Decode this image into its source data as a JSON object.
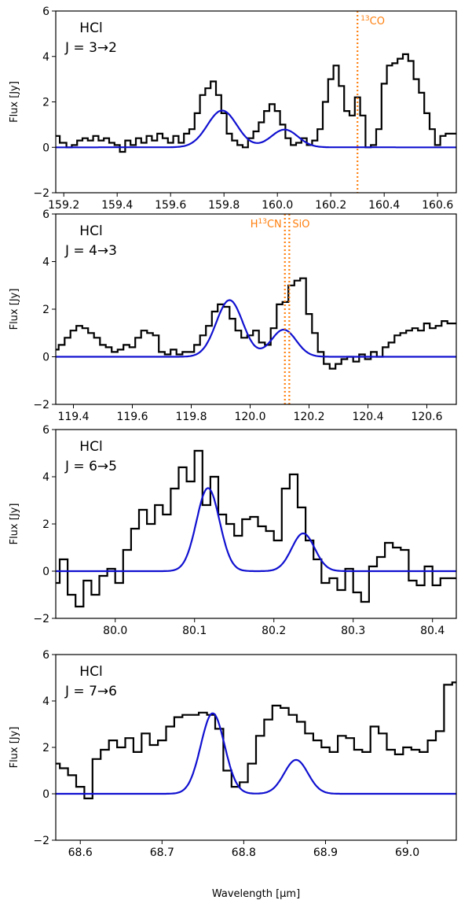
{
  "chart_data": [
    {
      "type": "line",
      "title_line1": "HCl",
      "title_line2": "J = 3→2",
      "xlabel": "",
      "ylabel": "Flux [Jy]",
      "xlim": [
        159.17,
        160.67
      ],
      "ylim": [
        -2,
        6
      ],
      "xticks": [
        159.2,
        159.4,
        159.6,
        159.8,
        160.0,
        160.2,
        160.4,
        160.6
      ],
      "xtick_labels": [
        "159.2",
        "159.4",
        "159.6",
        "159.8",
        "160.0",
        "160.2",
        "160.4",
        "160.6"
      ],
      "yticks": [
        -2,
        0,
        2,
        4,
        6
      ],
      "ytick_labels": [
        "−2",
        "0",
        "2",
        "4",
        "6"
      ],
      "observed": {
        "color": "#000000",
        "x": [
          159.17,
          159.2,
          159.22,
          159.24,
          159.26,
          159.28,
          159.3,
          159.32,
          159.34,
          159.36,
          159.38,
          159.4,
          159.42,
          159.44,
          159.46,
          159.48,
          159.5,
          159.52,
          159.54,
          159.56,
          159.58,
          159.6,
          159.62,
          159.64,
          159.66,
          159.68,
          159.7,
          159.72,
          159.74,
          159.76,
          159.78,
          159.8,
          159.82,
          159.84,
          159.86,
          159.88,
          159.9,
          159.92,
          159.94,
          159.96,
          159.98,
          160.0,
          160.02,
          160.04,
          160.06,
          160.08,
          160.1,
          160.12,
          160.14,
          160.16,
          160.18,
          160.2,
          160.22,
          160.24,
          160.26,
          160.28,
          160.3,
          160.32,
          160.34,
          160.36,
          160.38,
          160.4,
          160.42,
          160.44,
          160.46,
          160.48,
          160.5,
          160.52,
          160.54,
          160.56,
          160.58,
          160.6,
          160.62,
          160.64,
          160.67
        ],
        "y": [
          0.5,
          0.2,
          0.0,
          0.1,
          0.3,
          0.4,
          0.3,
          0.5,
          0.3,
          0.4,
          0.2,
          0.1,
          -0.2,
          0.3,
          0.1,
          0.4,
          0.2,
          0.5,
          0.3,
          0.6,
          0.4,
          0.2,
          0.5,
          0.2,
          0.6,
          0.8,
          1.5,
          2.3,
          2.6,
          2.9,
          2.3,
          1.5,
          0.6,
          0.3,
          0.1,
          0.0,
          0.4,
          0.7,
          1.1,
          1.6,
          1.9,
          1.6,
          1.0,
          0.4,
          0.1,
          0.2,
          0.4,
          0.1,
          0.3,
          0.8,
          2.0,
          3.0,
          3.6,
          2.7,
          1.6,
          1.4,
          2.2,
          1.4,
          0.0,
          0.1,
          0.8,
          2.8,
          3.6,
          3.7,
          3.9,
          4.1,
          3.8,
          3.0,
          2.4,
          1.5,
          0.8,
          0.1,
          0.5,
          0.6,
          0.6
        ]
      },
      "model": {
        "color": "#1010d0",
        "lines": [
          {
            "center": 159.793,
            "amplitude": 1.62,
            "sigma": 0.055
          },
          {
            "center": 160.027,
            "amplitude": 0.78,
            "sigma": 0.05
          }
        ]
      },
      "markers": [
        {
          "x": 160.3,
          "label_sup": "13",
          "label_main": "CO",
          "color": "#ff7f0e",
          "side": "right"
        }
      ]
    },
    {
      "type": "line",
      "title_line1": "HCl",
      "title_line2": "J = 4→3",
      "xlabel": "",
      "ylabel": "Flux [Jy]",
      "xlim": [
        119.34,
        120.7
      ],
      "ylim": [
        -2,
        6
      ],
      "xticks": [
        119.4,
        119.6,
        119.8,
        120.0,
        120.2,
        120.4,
        120.6
      ],
      "xtick_labels": [
        "119.4",
        "119.6",
        "119.8",
        "120.0",
        "120.2",
        "120.4",
        "120.6"
      ],
      "yticks": [
        -2,
        0,
        2,
        4,
        6
      ],
      "ytick_labels": [
        "−2",
        "0",
        "2",
        "4",
        "6"
      ],
      "observed": {
        "color": "#000000",
        "x": [
          119.34,
          119.36,
          119.38,
          119.4,
          119.42,
          119.44,
          119.46,
          119.48,
          119.5,
          119.52,
          119.54,
          119.56,
          119.58,
          119.6,
          119.62,
          119.64,
          119.66,
          119.68,
          119.7,
          119.72,
          119.74,
          119.76,
          119.78,
          119.8,
          119.82,
          119.84,
          119.86,
          119.88,
          119.9,
          119.92,
          119.94,
          119.96,
          119.98,
          120.0,
          120.02,
          120.04,
          120.06,
          120.08,
          120.1,
          120.12,
          120.14,
          120.16,
          120.18,
          120.2,
          120.22,
          120.24,
          120.26,
          120.28,
          120.3,
          120.32,
          120.34,
          120.36,
          120.38,
          120.4,
          120.42,
          120.44,
          120.46,
          120.48,
          120.5,
          120.52,
          120.54,
          120.56,
          120.58,
          120.6,
          120.62,
          120.64,
          120.66,
          120.68,
          120.7
        ],
        "y": [
          0.3,
          0.5,
          0.8,
          1.1,
          1.3,
          1.2,
          1.0,
          0.8,
          0.5,
          0.4,
          0.2,
          0.3,
          0.5,
          0.4,
          0.8,
          1.1,
          1.0,
          0.9,
          0.2,
          0.1,
          0.3,
          0.1,
          0.2,
          0.2,
          0.5,
          0.9,
          1.3,
          1.9,
          2.2,
          2.1,
          1.6,
          1.1,
          0.8,
          0.9,
          1.1,
          0.6,
          0.5,
          1.2,
          2.2,
          2.3,
          3.0,
          3.2,
          3.3,
          1.8,
          1.0,
          0.2,
          -0.3,
          -0.5,
          -0.3,
          -0.1,
          0.0,
          -0.2,
          0.1,
          -0.1,
          0.2,
          0.0,
          0.4,
          0.6,
          0.9,
          1.0,
          1.1,
          1.2,
          1.1,
          1.4,
          1.2,
          1.3,
          1.5,
          1.4,
          1.4
        ]
      },
      "model": {
        "color": "#1010d0",
        "lines": [
          {
            "center": 119.93,
            "amplitude": 2.38,
            "sigma": 0.045
          },
          {
            "center": 120.114,
            "amplitude": 1.14,
            "sigma": 0.042
          }
        ]
      },
      "markers": [
        {
          "x": 120.118,
          "label_main": "H",
          "label_sup": "13",
          "label_after": "CN",
          "color": "#ff7f0e",
          "side": "left"
        },
        {
          "x": 120.133,
          "label_main": "SiO",
          "color": "#ff7f0e",
          "side": "right"
        }
      ]
    },
    {
      "type": "line",
      "title_line1": "HCl",
      "title_line2": "J = 6→5",
      "xlabel": "",
      "ylabel": "Flux [Jy]",
      "xlim": [
        79.925,
        80.43
      ],
      "ylim": [
        -2,
        6
      ],
      "xticks": [
        80.0,
        80.1,
        80.2,
        80.3,
        80.4
      ],
      "xtick_labels": [
        "80.0",
        "80.1",
        "80.2",
        "80.3",
        "80.4"
      ],
      "yticks": [
        -2,
        0,
        2,
        4,
        6
      ],
      "ytick_labels": [
        "−2",
        "0",
        "2",
        "4",
        "6"
      ],
      "observed": {
        "color": "#000000",
        "x": [
          79.925,
          79.935,
          79.945,
          79.955,
          79.965,
          79.975,
          79.985,
          79.995,
          80.005,
          80.015,
          80.025,
          80.035,
          80.045,
          80.055,
          80.065,
          80.075,
          80.085,
          80.095,
          80.105,
          80.115,
          80.125,
          80.135,
          80.145,
          80.155,
          80.165,
          80.175,
          80.185,
          80.195,
          80.205,
          80.215,
          80.225,
          80.235,
          80.245,
          80.255,
          80.265,
          80.275,
          80.285,
          80.295,
          80.305,
          80.315,
          80.325,
          80.335,
          80.345,
          80.355,
          80.365,
          80.375,
          80.385,
          80.395,
          80.405,
          80.415,
          80.43
        ],
        "y": [
          -0.5,
          0.5,
          -1.0,
          -1.5,
          -0.4,
          -1.0,
          -0.2,
          0.1,
          -0.5,
          0.9,
          1.8,
          2.6,
          2.0,
          2.8,
          2.4,
          3.5,
          4.4,
          3.8,
          5.1,
          2.8,
          4.0,
          2.4,
          2.0,
          1.5,
          2.2,
          2.3,
          1.9,
          1.7,
          1.3,
          3.5,
          4.1,
          2.7,
          1.3,
          0.5,
          -0.5,
          -0.3,
          -0.8,
          0.1,
          -0.9,
          -1.3,
          0.2,
          0.6,
          1.2,
          1.0,
          0.9,
          -0.4,
          -0.6,
          0.2,
          -0.6,
          -0.3,
          -0.3
        ]
      },
      "model": {
        "color": "#1010d0",
        "lines": [
          {
            "center": 80.117,
            "amplitude": 3.52,
            "sigma": 0.0145
          },
          {
            "center": 80.237,
            "amplitude": 1.6,
            "sigma": 0.0145
          }
        ]
      },
      "markers": []
    },
    {
      "type": "line",
      "title_line1": "HCl",
      "title_line2": "J = 7→6",
      "xlabel": "Wavelength [μm]",
      "ylabel": "Flux [Jy]",
      "xlim": [
        68.57,
        69.06
      ],
      "ylim": [
        -2,
        6
      ],
      "xticks": [
        68.6,
        68.7,
        68.8,
        68.9,
        69.0
      ],
      "xtick_labels": [
        "68.6",
        "68.7",
        "68.8",
        "68.9",
        "69.0"
      ],
      "yticks": [
        -2,
        0,
        2,
        4,
        6
      ],
      "ytick_labels": [
        "−2",
        "0",
        "2",
        "4",
        "6"
      ],
      "observed": {
        "color": "#000000",
        "x": [
          68.57,
          68.58,
          68.59,
          68.6,
          68.61,
          68.62,
          68.63,
          68.64,
          68.65,
          68.66,
          68.67,
          68.68,
          68.69,
          68.7,
          68.71,
          68.72,
          68.73,
          68.74,
          68.75,
          68.76,
          68.77,
          68.78,
          68.79,
          68.8,
          68.81,
          68.82,
          68.83,
          68.84,
          68.85,
          68.86,
          68.87,
          68.88,
          68.89,
          68.9,
          68.91,
          68.92,
          68.93,
          68.94,
          68.95,
          68.96,
          68.97,
          68.98,
          68.99,
          69.0,
          69.01,
          69.02,
          69.03,
          69.04,
          69.05,
          69.06
        ],
        "y": [
          1.3,
          1.1,
          0.8,
          0.3,
          -0.2,
          1.5,
          1.9,
          2.3,
          2.0,
          2.4,
          1.8,
          2.6,
          2.1,
          2.3,
          2.9,
          3.3,
          3.4,
          3.4,
          3.5,
          3.4,
          2.8,
          1.0,
          0.3,
          0.5,
          1.3,
          2.5,
          3.2,
          3.8,
          3.7,
          3.4,
          3.1,
          2.6,
          2.3,
          2.0,
          1.8,
          2.5,
          2.4,
          1.9,
          1.8,
          2.9,
          2.6,
          1.9,
          1.7,
          2.0,
          1.9,
          1.8,
          2.3,
          2.7,
          4.7,
          4.8
        ]
      },
      "model": {
        "color": "#1010d0",
        "lines": [
          {
            "center": 68.762,
            "amplitude": 3.47,
            "sigma": 0.0145
          },
          {
            "center": 68.864,
            "amplitude": 1.46,
            "sigma": 0.0145
          }
        ]
      },
      "markers": []
    }
  ]
}
